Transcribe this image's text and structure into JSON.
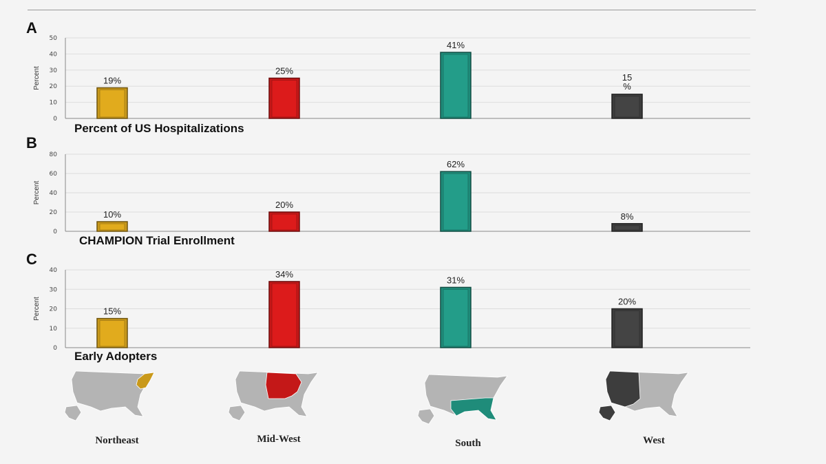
{
  "colors": {
    "northeast": "#c9991a",
    "midwest": "#c41818",
    "south": "#1f8c7a",
    "west": "#3d3d3d",
    "map_base": "#b4b4b4"
  },
  "regions": [
    "Northeast",
    "Mid-West",
    "South",
    "West"
  ],
  "chart_data": [
    {
      "type": "bar",
      "panel_letter": "A",
      "title": "Percent of US Hospitalizations",
      "ylabel": "Percent",
      "ylim": [
        0,
        50
      ],
      "yticks": [
        0,
        10,
        20,
        30,
        40,
        50
      ],
      "categories": [
        "Northeast",
        "Mid-West",
        "South",
        "West"
      ],
      "values": [
        19,
        25,
        41,
        15
      ],
      "data_labels": [
        "19%",
        "25%",
        "41%",
        "15\n%"
      ],
      "grid": true
    },
    {
      "type": "bar",
      "panel_letter": "B",
      "title": "CHAMPION Trial Enrollment",
      "ylabel": "Percent",
      "ylim": [
        0,
        80
      ],
      "yticks": [
        0,
        20,
        40,
        60,
        80
      ],
      "categories": [
        "Northeast",
        "Mid-West",
        "South",
        "West"
      ],
      "values": [
        10,
        20,
        62,
        8
      ],
      "data_labels": [
        "10%",
        "20%",
        "62%",
        "8%"
      ],
      "grid": true
    },
    {
      "type": "bar",
      "panel_letter": "C",
      "title": "Early Adopters",
      "ylabel": "Percent",
      "ylim": [
        0,
        40
      ],
      "yticks": [
        0,
        10,
        20,
        30,
        40
      ],
      "categories": [
        "Northeast",
        "Mid-West",
        "South",
        "West"
      ],
      "values": [
        15,
        34,
        31,
        20
      ],
      "data_labels": [
        "15%",
        "34%",
        "31%",
        "20%"
      ],
      "grid": true
    }
  ]
}
